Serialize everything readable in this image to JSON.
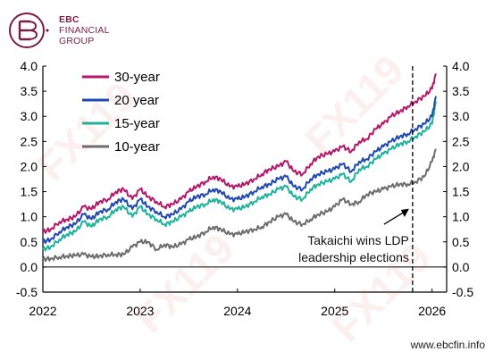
{
  "brand": {
    "line1": "EBC",
    "line2": "FINANCIAL",
    "line3": "GROUP",
    "website": "www.ebcfin.info",
    "watermark": "FX119",
    "color": "#7a1f3d"
  },
  "chart_data": {
    "type": "line",
    "title": "",
    "xlabel": "",
    "ylabel": "",
    "ylim": [
      -0.5,
      4.0
    ],
    "xlim": [
      2022.0,
      2026.15
    ],
    "yticks": [
      "4.0",
      "3.5",
      "3.0",
      "2.5",
      "2.0",
      "1.5",
      "1.0",
      "0.5",
      "0.0",
      "-0.5"
    ],
    "ytick_values": [
      4.0,
      3.5,
      3.0,
      2.5,
      2.0,
      1.5,
      1.0,
      0.5,
      0.0,
      -0.5
    ],
    "xticks": [
      "2022",
      "2023",
      "2024",
      "2025",
      "2026"
    ],
    "xtick_values": [
      2022,
      2023,
      2024,
      2025,
      2026
    ],
    "grid": false,
    "legend_placement": "top-left",
    "zero_line": true,
    "series": [
      {
        "name": "30-year",
        "color": "#b5186a",
        "x": [
          2022.0,
          2022.08,
          2022.17,
          2022.25,
          2022.33,
          2022.42,
          2022.5,
          2022.58,
          2022.67,
          2022.75,
          2022.83,
          2022.92,
          2023.0,
          2023.08,
          2023.17,
          2023.25,
          2023.33,
          2023.42,
          2023.5,
          2023.58,
          2023.67,
          2023.75,
          2023.83,
          2023.92,
          2024.0,
          2024.08,
          2024.17,
          2024.25,
          2024.33,
          2024.42,
          2024.5,
          2024.58,
          2024.67,
          2024.75,
          2024.83,
          2024.92,
          2025.0,
          2025.08,
          2025.17,
          2025.25,
          2025.33,
          2025.42,
          2025.5,
          2025.58,
          2025.67,
          2025.75,
          2025.83,
          2025.92,
          2026.0,
          2026.04
        ],
        "y": [
          0.7,
          0.75,
          0.9,
          0.95,
          1.0,
          1.2,
          1.15,
          1.3,
          1.35,
          1.5,
          1.55,
          1.35,
          1.55,
          1.4,
          1.3,
          1.2,
          1.25,
          1.35,
          1.5,
          1.6,
          1.7,
          1.8,
          1.75,
          1.6,
          1.6,
          1.65,
          1.75,
          1.85,
          1.95,
          2.0,
          2.1,
          1.9,
          1.85,
          2.05,
          2.2,
          2.25,
          2.3,
          2.4,
          2.3,
          2.5,
          2.55,
          2.75,
          2.85,
          3.0,
          3.1,
          3.2,
          3.3,
          3.4,
          3.55,
          3.85
        ]
      },
      {
        "name": "20 year",
        "color": "#2049b4",
        "x": [
          2022.0,
          2022.08,
          2022.17,
          2022.25,
          2022.33,
          2022.42,
          2022.5,
          2022.58,
          2022.67,
          2022.75,
          2022.83,
          2022.92,
          2023.0,
          2023.08,
          2023.17,
          2023.25,
          2023.33,
          2023.42,
          2023.5,
          2023.58,
          2023.67,
          2023.75,
          2023.83,
          2023.92,
          2024.0,
          2024.08,
          2024.17,
          2024.25,
          2024.33,
          2024.42,
          2024.5,
          2024.58,
          2024.67,
          2024.75,
          2024.83,
          2024.92,
          2025.0,
          2025.08,
          2025.17,
          2025.25,
          2025.33,
          2025.42,
          2025.5,
          2025.58,
          2025.67,
          2025.75,
          2025.83,
          2025.92,
          2026.0,
          2026.04
        ],
        "y": [
          0.5,
          0.55,
          0.7,
          0.8,
          0.85,
          1.05,
          0.95,
          1.1,
          1.15,
          1.3,
          1.35,
          1.15,
          1.35,
          1.2,
          1.1,
          1.0,
          1.05,
          1.15,
          1.3,
          1.4,
          1.45,
          1.55,
          1.5,
          1.35,
          1.35,
          1.4,
          1.5,
          1.6,
          1.65,
          1.75,
          1.8,
          1.6,
          1.55,
          1.75,
          1.85,
          1.9,
          1.95,
          2.05,
          1.9,
          2.1,
          2.15,
          2.3,
          2.4,
          2.5,
          2.6,
          2.65,
          2.75,
          2.85,
          3.0,
          3.4
        ]
      },
      {
        "name": "15-year",
        "color": "#1fb39c",
        "x": [
          2022.0,
          2022.08,
          2022.17,
          2022.25,
          2022.33,
          2022.42,
          2022.5,
          2022.58,
          2022.67,
          2022.75,
          2022.83,
          2022.92,
          2023.0,
          2023.08,
          2023.17,
          2023.25,
          2023.33,
          2023.42,
          2023.5,
          2023.58,
          2023.67,
          2023.75,
          2023.83,
          2023.92,
          2024.0,
          2024.08,
          2024.17,
          2024.25,
          2024.33,
          2024.42,
          2024.5,
          2024.58,
          2024.67,
          2024.75,
          2024.83,
          2024.92,
          2025.0,
          2025.08,
          2025.17,
          2025.25,
          2025.33,
          2025.42,
          2025.5,
          2025.58,
          2025.67,
          2025.75,
          2025.83,
          2025.92,
          2026.0,
          2026.04
        ],
        "y": [
          0.35,
          0.4,
          0.55,
          0.65,
          0.7,
          0.9,
          0.8,
          0.95,
          1.0,
          1.15,
          1.2,
          1.0,
          1.2,
          1.05,
          0.95,
          0.85,
          0.9,
          1.0,
          1.1,
          1.2,
          1.25,
          1.35,
          1.3,
          1.15,
          1.15,
          1.2,
          1.3,
          1.4,
          1.45,
          1.55,
          1.6,
          1.4,
          1.35,
          1.55,
          1.65,
          1.7,
          1.75,
          1.85,
          1.7,
          1.95,
          2.0,
          2.15,
          2.25,
          2.35,
          2.45,
          2.5,
          2.6,
          2.7,
          2.85,
          3.3
        ]
      },
      {
        "name": "10-year",
        "color": "#6d6d6d",
        "x": [
          2022.0,
          2022.08,
          2022.17,
          2022.25,
          2022.33,
          2022.42,
          2022.5,
          2022.58,
          2022.67,
          2022.75,
          2022.83,
          2022.92,
          2023.0,
          2023.08,
          2023.17,
          2023.25,
          2023.33,
          2023.42,
          2023.5,
          2023.58,
          2023.67,
          2023.75,
          2023.83,
          2023.92,
          2024.0,
          2024.08,
          2024.17,
          2024.25,
          2024.33,
          2024.42,
          2024.5,
          2024.58,
          2024.67,
          2024.75,
          2024.83,
          2024.92,
          2025.0,
          2025.08,
          2025.17,
          2025.25,
          2025.33,
          2025.42,
          2025.5,
          2025.58,
          2025.67,
          2025.75,
          2025.83,
          2025.92,
          2026.0,
          2026.04
        ],
        "y": [
          0.15,
          0.17,
          0.2,
          0.22,
          0.23,
          0.25,
          0.2,
          0.22,
          0.25,
          0.25,
          0.25,
          0.4,
          0.5,
          0.5,
          0.35,
          0.45,
          0.4,
          0.45,
          0.55,
          0.6,
          0.7,
          0.8,
          0.75,
          0.65,
          0.65,
          0.7,
          0.75,
          0.8,
          0.9,
          1.0,
          1.05,
          0.9,
          0.85,
          0.95,
          1.05,
          1.1,
          1.2,
          1.35,
          1.25,
          1.3,
          1.45,
          1.5,
          1.55,
          1.6,
          1.65,
          1.65,
          1.7,
          1.8,
          2.1,
          2.35
        ]
      }
    ],
    "annotation": {
      "text_line1": "Takaichi wins LDP",
      "text_line2": "leadership elections",
      "event_x": 2025.8,
      "arrow_target_y": 1.1
    }
  }
}
